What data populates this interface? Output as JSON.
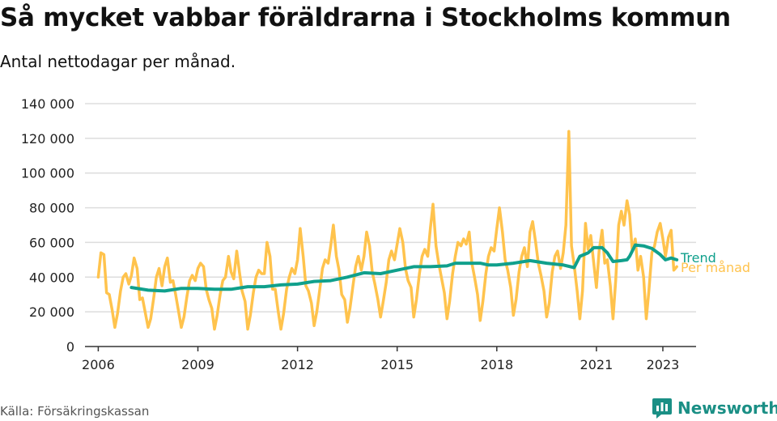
{
  "header": {
    "title": "Så mycket vabbar föräldrarna i Stockholms kommun",
    "subtitle": "Antal nettodagar per månad."
  },
  "footer": {
    "source": "Källa: Försäkringskassan",
    "brand": "Newsworthy"
  },
  "colors": {
    "monthly": "#ffc34d",
    "trend": "#10a08c",
    "grid": "#dddddd",
    "brand": "#1a8f85"
  },
  "chart_data": {
    "type": "line",
    "y_ticks": [
      "0",
      "20 000",
      "40 000",
      "60 000",
      "80 000",
      "100 000",
      "120 000",
      "140 000"
    ],
    "x_ticks": [
      "2006",
      "2009",
      "2012",
      "2015",
      "2018",
      "2021",
      "2023"
    ],
    "ylim": [
      0,
      140000
    ],
    "xlim": [
      2005.6,
      2024.0
    ],
    "grid": "horizontal",
    "series": [
      {
        "name": "Per månad",
        "color": "#ffc34d",
        "points": [
          [
            2006.0,
            40000
          ],
          [
            2006.08,
            54000
          ],
          [
            2006.17,
            53000
          ],
          [
            2006.25,
            31000
          ],
          [
            2006.33,
            30000
          ],
          [
            2006.42,
            21000
          ],
          [
            2006.5,
            11000
          ],
          [
            2006.58,
            19000
          ],
          [
            2006.67,
            32000
          ],
          [
            2006.75,
            40000
          ],
          [
            2006.83,
            42000
          ],
          [
            2006.92,
            36000
          ],
          [
            2007.0,
            41000
          ],
          [
            2007.08,
            51000
          ],
          [
            2007.17,
            45000
          ],
          [
            2007.25,
            27000
          ],
          [
            2007.33,
            28000
          ],
          [
            2007.42,
            19000
          ],
          [
            2007.5,
            11000
          ],
          [
            2007.58,
            16000
          ],
          [
            2007.67,
            28000
          ],
          [
            2007.75,
            40000
          ],
          [
            2007.83,
            45000
          ],
          [
            2007.92,
            35000
          ],
          [
            2008.0,
            46000
          ],
          [
            2008.08,
            51000
          ],
          [
            2008.17,
            37000
          ],
          [
            2008.25,
            38000
          ],
          [
            2008.33,
            30000
          ],
          [
            2008.42,
            20000
          ],
          [
            2008.5,
            11000
          ],
          [
            2008.58,
            17000
          ],
          [
            2008.67,
            29000
          ],
          [
            2008.75,
            38000
          ],
          [
            2008.83,
            41000
          ],
          [
            2008.92,
            38000
          ],
          [
            2009.0,
            45000
          ],
          [
            2009.08,
            48000
          ],
          [
            2009.17,
            46000
          ],
          [
            2009.25,
            33000
          ],
          [
            2009.33,
            27000
          ],
          [
            2009.42,
            22000
          ],
          [
            2009.5,
            10000
          ],
          [
            2009.58,
            18000
          ],
          [
            2009.67,
            30000
          ],
          [
            2009.75,
            38000
          ],
          [
            2009.83,
            40000
          ],
          [
            2009.92,
            52000
          ],
          [
            2010.0,
            43000
          ],
          [
            2010.08,
            39000
          ],
          [
            2010.17,
            55000
          ],
          [
            2010.25,
            43000
          ],
          [
            2010.33,
            32000
          ],
          [
            2010.42,
            26000
          ],
          [
            2010.5,
            10000
          ],
          [
            2010.58,
            18000
          ],
          [
            2010.67,
            31000
          ],
          [
            2010.75,
            40000
          ],
          [
            2010.83,
            44000
          ],
          [
            2010.92,
            42000
          ],
          [
            2011.0,
            42000
          ],
          [
            2011.08,
            60000
          ],
          [
            2011.17,
            52000
          ],
          [
            2011.25,
            33000
          ],
          [
            2011.33,
            33000
          ],
          [
            2011.42,
            20000
          ],
          [
            2011.5,
            10000
          ],
          [
            2011.58,
            19000
          ],
          [
            2011.67,
            33000
          ],
          [
            2011.75,
            40000
          ],
          [
            2011.83,
            45000
          ],
          [
            2011.92,
            42000
          ],
          [
            2012.0,
            50000
          ],
          [
            2012.08,
            68000
          ],
          [
            2012.17,
            52000
          ],
          [
            2012.25,
            35000
          ],
          [
            2012.33,
            32000
          ],
          [
            2012.42,
            25000
          ],
          [
            2012.5,
            12000
          ],
          [
            2012.58,
            20000
          ],
          [
            2012.67,
            33000
          ],
          [
            2012.75,
            45000
          ],
          [
            2012.83,
            50000
          ],
          [
            2012.92,
            48000
          ],
          [
            2013.0,
            58000
          ],
          [
            2013.08,
            70000
          ],
          [
            2013.17,
            52000
          ],
          [
            2013.25,
            44000
          ],
          [
            2013.33,
            30000
          ],
          [
            2013.42,
            27000
          ],
          [
            2013.5,
            14000
          ],
          [
            2013.58,
            22000
          ],
          [
            2013.67,
            35000
          ],
          [
            2013.75,
            46000
          ],
          [
            2013.83,
            52000
          ],
          [
            2013.92,
            44000
          ],
          [
            2014.0,
            52000
          ],
          [
            2014.08,
            66000
          ],
          [
            2014.17,
            58000
          ],
          [
            2014.25,
            43000
          ],
          [
            2014.33,
            36000
          ],
          [
            2014.42,
            27000
          ],
          [
            2014.5,
            17000
          ],
          [
            2014.58,
            26000
          ],
          [
            2014.67,
            37000
          ],
          [
            2014.75,
            50000
          ],
          [
            2014.83,
            55000
          ],
          [
            2014.92,
            50000
          ],
          [
            2015.0,
            59000
          ],
          [
            2015.08,
            68000
          ],
          [
            2015.17,
            60000
          ],
          [
            2015.25,
            45000
          ],
          [
            2015.33,
            38000
          ],
          [
            2015.42,
            34000
          ],
          [
            2015.5,
            17000
          ],
          [
            2015.58,
            27000
          ],
          [
            2015.67,
            42000
          ],
          [
            2015.75,
            52000
          ],
          [
            2015.83,
            56000
          ],
          [
            2015.92,
            52000
          ],
          [
            2016.0,
            68000
          ],
          [
            2016.08,
            82000
          ],
          [
            2016.17,
            58000
          ],
          [
            2016.25,
            48000
          ],
          [
            2016.33,
            40000
          ],
          [
            2016.42,
            31000
          ],
          [
            2016.5,
            16000
          ],
          [
            2016.58,
            26000
          ],
          [
            2016.67,
            42000
          ],
          [
            2016.75,
            52000
          ],
          [
            2016.83,
            60000
          ],
          [
            2016.92,
            58000
          ],
          [
            2017.0,
            62000
          ],
          [
            2017.08,
            59000
          ],
          [
            2017.17,
            66000
          ],
          [
            2017.25,
            48000
          ],
          [
            2017.33,
            40000
          ],
          [
            2017.42,
            30000
          ],
          [
            2017.5,
            15000
          ],
          [
            2017.58,
            26000
          ],
          [
            2017.67,
            42000
          ],
          [
            2017.75,
            52000
          ],
          [
            2017.83,
            57000
          ],
          [
            2017.92,
            55000
          ],
          [
            2018.0,
            68000
          ],
          [
            2018.08,
            80000
          ],
          [
            2018.17,
            66000
          ],
          [
            2018.25,
            50000
          ],
          [
            2018.33,
            44000
          ],
          [
            2018.42,
            34000
          ],
          [
            2018.5,
            18000
          ],
          [
            2018.58,
            27000
          ],
          [
            2018.67,
            43000
          ],
          [
            2018.75,
            52000
          ],
          [
            2018.83,
            57000
          ],
          [
            2018.92,
            46000
          ],
          [
            2019.0,
            66000
          ],
          [
            2019.08,
            72000
          ],
          [
            2019.17,
            60000
          ],
          [
            2019.25,
            48000
          ],
          [
            2019.33,
            41000
          ],
          [
            2019.42,
            32000
          ],
          [
            2019.5,
            17000
          ],
          [
            2019.58,
            25000
          ],
          [
            2019.67,
            43000
          ],
          [
            2019.75,
            52000
          ],
          [
            2019.83,
            55000
          ],
          [
            2019.92,
            45000
          ],
          [
            2020.0,
            54000
          ],
          [
            2020.08,
            70000
          ],
          [
            2020.17,
            124000
          ],
          [
            2020.25,
            58000
          ],
          [
            2020.33,
            47000
          ],
          [
            2020.42,
            32000
          ],
          [
            2020.5,
            16000
          ],
          [
            2020.58,
            32000
          ],
          [
            2020.67,
            71000
          ],
          [
            2020.75,
            56000
          ],
          [
            2020.83,
            64000
          ],
          [
            2020.92,
            48000
          ],
          [
            2021.0,
            34000
          ],
          [
            2021.08,
            55000
          ],
          [
            2021.17,
            67000
          ],
          [
            2021.25,
            48000
          ],
          [
            2021.33,
            50000
          ],
          [
            2021.42,
            35000
          ],
          [
            2021.5,
            16000
          ],
          [
            2021.58,
            38000
          ],
          [
            2021.67,
            70000
          ],
          [
            2021.75,
            78000
          ],
          [
            2021.83,
            70000
          ],
          [
            2021.92,
            84000
          ],
          [
            2022.0,
            76000
          ],
          [
            2022.08,
            55000
          ],
          [
            2022.17,
            62000
          ],
          [
            2022.25,
            44000
          ],
          [
            2022.33,
            52000
          ],
          [
            2022.42,
            40000
          ],
          [
            2022.5,
            16000
          ],
          [
            2022.58,
            32000
          ],
          [
            2022.67,
            54000
          ],
          [
            2022.75,
            58000
          ],
          [
            2022.83,
            66000
          ],
          [
            2022.92,
            71000
          ],
          [
            2023.0,
            62000
          ],
          [
            2023.08,
            52000
          ],
          [
            2023.17,
            63000
          ],
          [
            2023.25,
            67000
          ],
          [
            2023.33,
            44000
          ],
          [
            2023.42,
            46000
          ]
        ]
      },
      {
        "name": "Trend",
        "color": "#10a08c",
        "points": [
          [
            2007.0,
            34000
          ],
          [
            2007.5,
            32500
          ],
          [
            2008.0,
            32000
          ],
          [
            2008.5,
            33500
          ],
          [
            2009.0,
            33500
          ],
          [
            2009.5,
            33000
          ],
          [
            2010.0,
            33000
          ],
          [
            2010.5,
            34500
          ],
          [
            2011.0,
            34500
          ],
          [
            2011.5,
            35500
          ],
          [
            2012.0,
            36000
          ],
          [
            2012.5,
            37500
          ],
          [
            2013.0,
            38000
          ],
          [
            2013.5,
            40000
          ],
          [
            2014.0,
            42500
          ],
          [
            2014.5,
            42000
          ],
          [
            2015.0,
            44000
          ],
          [
            2015.5,
            46000
          ],
          [
            2016.0,
            46000
          ],
          [
            2016.5,
            46500
          ],
          [
            2016.75,
            48000
          ],
          [
            2017.0,
            48000
          ],
          [
            2017.5,
            48000
          ],
          [
            2017.75,
            47000
          ],
          [
            2018.0,
            47000
          ],
          [
            2018.5,
            48000
          ],
          [
            2019.0,
            49500
          ],
          [
            2019.5,
            48000
          ],
          [
            2020.0,
            47000
          ],
          [
            2020.33,
            45500
          ],
          [
            2020.5,
            52000
          ],
          [
            2020.75,
            54000
          ],
          [
            2020.92,
            57000
          ],
          [
            2021.17,
            57000
          ],
          [
            2021.33,
            54000
          ],
          [
            2021.5,
            49000
          ],
          [
            2021.75,
            49500
          ],
          [
            2021.92,
            50000
          ],
          [
            2022.0,
            52000
          ],
          [
            2022.17,
            58500
          ],
          [
            2022.42,
            58000
          ],
          [
            2022.67,
            56500
          ],
          [
            2022.92,
            53000
          ],
          [
            2023.08,
            50000
          ],
          [
            2023.25,
            51000
          ],
          [
            2023.42,
            50000
          ]
        ]
      }
    ]
  }
}
